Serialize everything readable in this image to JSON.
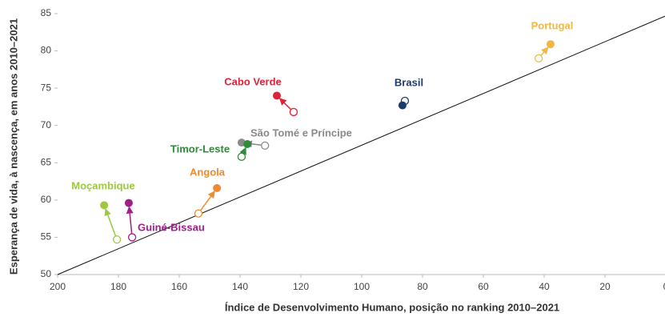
{
  "chart_data": {
    "type": "arrow-scatter",
    "x_label": "Índice de Desenvolvimento Humano, posição no ranking 2010–2021",
    "y_label": "Esperança de vida, à nascença, em anos 2010–2021",
    "xlim": [
      200,
      0
    ],
    "xticks": [
      200,
      180,
      160,
      140,
      120,
      100,
      80,
      60,
      40,
      20,
      0
    ],
    "ylim": [
      50,
      85
    ],
    "yticks": [
      50,
      55,
      60,
      65,
      70,
      75,
      80,
      85
    ],
    "reference_line": {
      "x": [
        200,
        0
      ],
      "y": [
        50,
        84.7
      ],
      "color": "#111111"
    },
    "series": [
      {
        "name": "Portugal",
        "color": "#f0b840",
        "x": [
          41.8,
          37.9
        ],
        "values": [
          79.0,
          80.9
        ]
      },
      {
        "name": "Brasil",
        "color": "#1c3a6e",
        "x": [
          85.8,
          86.6
        ],
        "values": [
          73.3,
          72.7
        ]
      },
      {
        "name": "Cabo Verde",
        "color": "#e0223a",
        "x": [
          122.4,
          127.9
        ],
        "values": [
          71.8,
          74.0
        ]
      },
      {
        "name": "São Tomé e Príncipe",
        "color": "#8a8a8a",
        "x": [
          131.8,
          139.5
        ],
        "values": [
          67.3,
          67.7
        ]
      },
      {
        "name": "Timor-Leste",
        "color": "#2e8b3a",
        "x": [
          139.5,
          137.6
        ],
        "values": [
          65.8,
          67.5
        ]
      },
      {
        "name": "Angola",
        "color": "#f08a30",
        "x": [
          153.7,
          147.6
        ],
        "values": [
          58.2,
          61.6
        ]
      },
      {
        "name": "Moçambique",
        "color": "#9dc840",
        "x": [
          180.5,
          184.7
        ],
        "values": [
          54.7,
          59.3
        ]
      },
      {
        "name": "Guiné-Bissau",
        "color": "#a0208a",
        "x": [
          175.5,
          176.6
        ],
        "values": [
          55.0,
          59.6
        ]
      }
    ]
  }
}
